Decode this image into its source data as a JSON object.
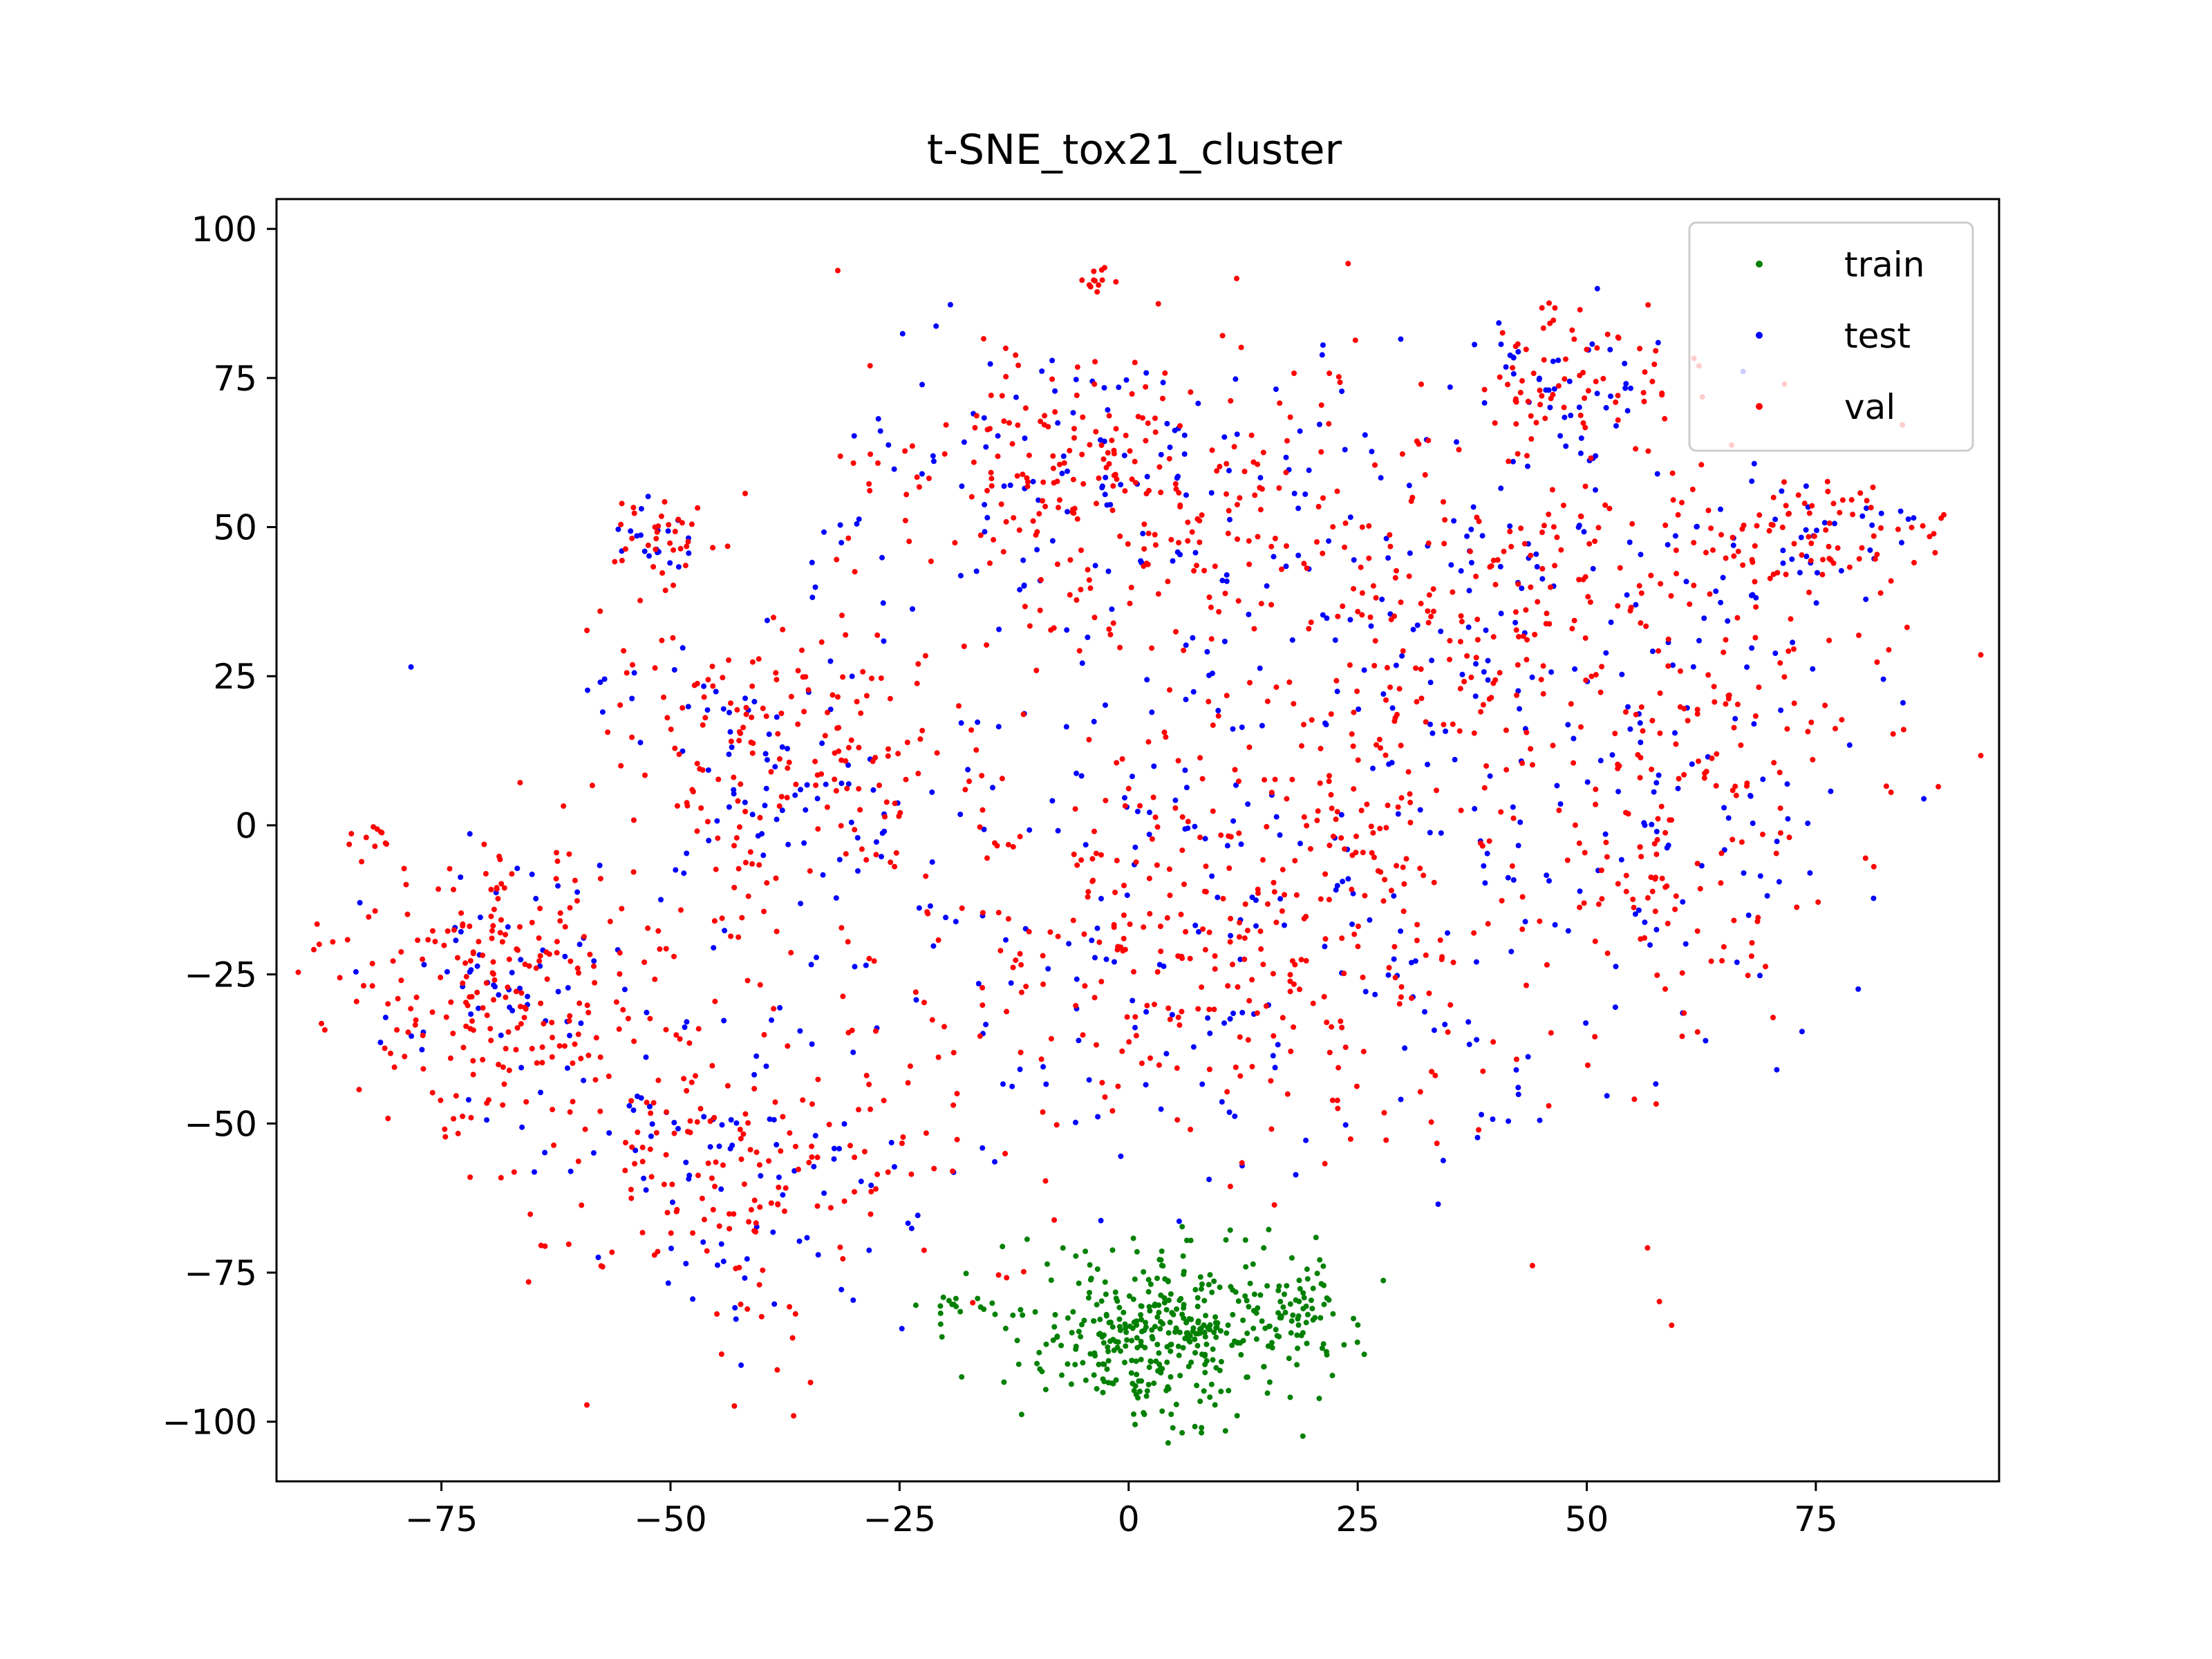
{
  "chart_data": {
    "type": "scatter",
    "title": "t-SNE_tox21_cluster",
    "xlabel": "",
    "ylabel": "",
    "xlim": [
      -93,
      95
    ],
    "ylim": [
      -110,
      105
    ],
    "xticks": [
      -75,
      -50,
      -25,
      0,
      25,
      50,
      75
    ],
    "yticks": [
      100,
      75,
      50,
      25,
      0,
      -25,
      -50,
      -75,
      -100
    ],
    "grid": false,
    "legend_position": "top-right",
    "colors": {
      "train": "#008000",
      "test": "#0000ff",
      "val": "#ff0000",
      "axes": "#000000",
      "legend_frame": "#cccccc"
    },
    "legend": [
      "train",
      "test",
      "val"
    ],
    "clusters": [
      {
        "series": "train",
        "cx": 3,
        "cy": -85,
        "sx": 8,
        "sy": 7,
        "n": 380
      },
      {
        "series": "train",
        "cx": 19,
        "cy": -82,
        "sx": 2.5,
        "sy": 4,
        "n": 60
      },
      {
        "series": "train",
        "cx": -20,
        "cy": -81,
        "sx": 3.5,
        "sy": 1,
        "n": 14
      },
      {
        "series": "test",
        "cx": -5,
        "cy": 58,
        "sx": 13,
        "sy": 12,
        "n": 110
      },
      {
        "series": "val",
        "cx": -5,
        "cy": 58,
        "sx": 13,
        "sy": 12,
        "n": 210
      },
      {
        "series": "test",
        "cx": 37,
        "cy": 30,
        "sx": 22,
        "sy": 20,
        "n": 180
      },
      {
        "series": "val",
        "cx": 37,
        "cy": 30,
        "sx": 22,
        "sy": 20,
        "n": 360
      },
      {
        "series": "test",
        "cx": 8,
        "cy": -20,
        "sx": 22,
        "sy": 20,
        "n": 180
      },
      {
        "series": "val",
        "cx": 8,
        "cy": -20,
        "sx": 22,
        "sy": 20,
        "n": 360
      },
      {
        "series": "test",
        "cx": 60,
        "cy": -2,
        "sx": 9,
        "sy": 20,
        "n": 60
      },
      {
        "series": "val",
        "cx": 60,
        "cy": -2,
        "sx": 9,
        "sy": 20,
        "n": 110
      },
      {
        "series": "test",
        "cx": -40,
        "cy": 10,
        "sx": 10,
        "sy": 14,
        "n": 80
      },
      {
        "series": "val",
        "cx": -40,
        "cy": 10,
        "sx": 10,
        "sy": 14,
        "n": 180
      },
      {
        "series": "test",
        "cx": -68,
        "cy": -27,
        "sx": 9,
        "sy": 11,
        "n": 70
      },
      {
        "series": "val",
        "cx": -68,
        "cy": -27,
        "sx": 9,
        "sy": 11,
        "n": 210
      },
      {
        "series": "test",
        "cx": -42,
        "cy": -57,
        "sx": 12,
        "sy": 14,
        "n": 90
      },
      {
        "series": "val",
        "cx": -42,
        "cy": -57,
        "sx": 12,
        "sy": 14,
        "n": 180
      },
      {
        "series": "test",
        "cx": 47,
        "cy": 76,
        "sx": 6,
        "sy": 6,
        "n": 45
      },
      {
        "series": "val",
        "cx": 47,
        "cy": 76,
        "sx": 6,
        "sy": 6,
        "n": 70
      },
      {
        "series": "test",
        "cx": 73,
        "cy": 49,
        "sx": 7,
        "sy": 5,
        "n": 40
      },
      {
        "series": "val",
        "cx": 73,
        "cy": 49,
        "sx": 7,
        "sy": 5,
        "n": 75
      },
      {
        "series": "test",
        "cx": -51,
        "cy": 48,
        "sx": 3,
        "sy": 4,
        "n": 18
      },
      {
        "series": "val",
        "cx": -51,
        "cy": 48,
        "sx": 3,
        "sy": 4,
        "n": 35
      },
      {
        "series": "val",
        "cx": -3,
        "cy": 92,
        "sx": 1.5,
        "sy": 1.5,
        "n": 12
      },
      {
        "series": "val",
        "cx": -82,
        "cy": -2,
        "sx": 1.5,
        "sy": 1.5,
        "n": 10
      },
      {
        "series": "test",
        "cx": 40,
        "cy": -49,
        "sx": 1.5,
        "sy": 0.8,
        "n": 5
      },
      {
        "series": "val",
        "cx": 58,
        "cy": -80,
        "sx": 0.1,
        "sy": 0.1,
        "n": 1
      }
    ]
  }
}
